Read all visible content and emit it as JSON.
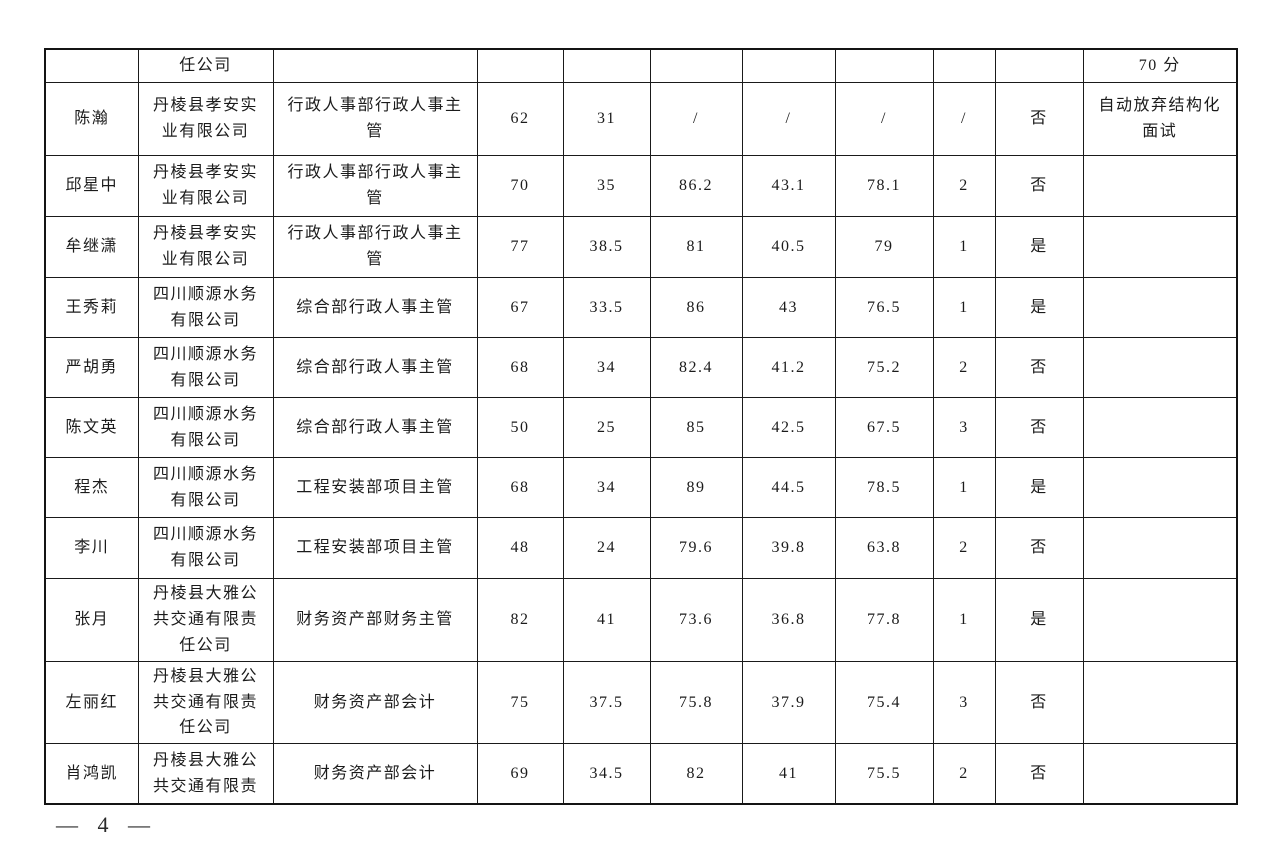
{
  "page": {
    "footer_page_number": "— 4 —"
  },
  "table": {
    "continuation_header": {
      "company_fragment": "任公司",
      "remark_fragment": "70 分"
    },
    "columns": [
      "name",
      "company",
      "position",
      "written_score",
      "written_weighted",
      "interview_score",
      "interview_weighted",
      "total_score",
      "rank",
      "qualified",
      "remark"
    ],
    "rows": [
      {
        "name": "陈瀚",
        "company": "丹棱县孝安实业有限公司",
        "position": "行政人事部行政人事主管",
        "written_score": "62",
        "written_weighted": "31",
        "interview_score": "/",
        "interview_weighted": "/",
        "total_score": "/",
        "rank": "/",
        "qualified": "否",
        "remark": "自动放弃结构化面试"
      },
      {
        "name": "邱星中",
        "company": "丹棱县孝安实业有限公司",
        "position": "行政人事部行政人事主管",
        "written_score": "70",
        "written_weighted": "35",
        "interview_score": "86.2",
        "interview_weighted": "43.1",
        "total_score": "78.1",
        "rank": "2",
        "qualified": "否",
        "remark": ""
      },
      {
        "name": "牟继潇",
        "company": "丹棱县孝安实业有限公司",
        "position": "行政人事部行政人事主管",
        "written_score": "77",
        "written_weighted": "38.5",
        "interview_score": "81",
        "interview_weighted": "40.5",
        "total_score": "79",
        "rank": "1",
        "qualified": "是",
        "remark": ""
      },
      {
        "name": "王秀莉",
        "company": "四川顺源水务有限公司",
        "position": "综合部行政人事主管",
        "written_score": "67",
        "written_weighted": "33.5",
        "interview_score": "86",
        "interview_weighted": "43",
        "total_score": "76.5",
        "rank": "1",
        "qualified": "是",
        "remark": ""
      },
      {
        "name": "严胡勇",
        "company": "四川顺源水务有限公司",
        "position": "综合部行政人事主管",
        "written_score": "68",
        "written_weighted": "34",
        "interview_score": "82.4",
        "interview_weighted": "41.2",
        "total_score": "75.2",
        "rank": "2",
        "qualified": "否",
        "remark": ""
      },
      {
        "name": "陈文英",
        "company": "四川顺源水务有限公司",
        "position": "综合部行政人事主管",
        "written_score": "50",
        "written_weighted": "25",
        "interview_score": "85",
        "interview_weighted": "42.5",
        "total_score": "67.5",
        "rank": "3",
        "qualified": "否",
        "remark": ""
      },
      {
        "name": "程杰",
        "company": "四川顺源水务有限公司",
        "position": "工程安装部项目主管",
        "written_score": "68",
        "written_weighted": "34",
        "interview_score": "89",
        "interview_weighted": "44.5",
        "total_score": "78.5",
        "rank": "1",
        "qualified": "是",
        "remark": ""
      },
      {
        "name": "李川",
        "company": "四川顺源水务有限公司",
        "position": "工程安装部项目主管",
        "written_score": "48",
        "written_weighted": "24",
        "interview_score": "79.6",
        "interview_weighted": "39.8",
        "total_score": "63.8",
        "rank": "2",
        "qualified": "否",
        "remark": ""
      },
      {
        "name": "张月",
        "company": "丹棱县大雅公共交通有限责任公司",
        "position": "财务资产部财务主管",
        "written_score": "82",
        "written_weighted": "41",
        "interview_score": "73.6",
        "interview_weighted": "36.8",
        "total_score": "77.8",
        "rank": "1",
        "qualified": "是",
        "remark": ""
      },
      {
        "name": "左丽红",
        "company": "丹棱县大雅公共交通有限责任公司",
        "position": "财务资产部会计",
        "written_score": "75",
        "written_weighted": "37.5",
        "interview_score": "75.8",
        "interview_weighted": "37.9",
        "total_score": "75.4",
        "rank": "3",
        "qualified": "否",
        "remark": ""
      },
      {
        "name": "肖鸿凯",
        "company": "丹棱县大雅公共交通有限责",
        "position": "财务资产部会计",
        "written_score": "69",
        "written_weighted": "34.5",
        "interview_score": "82",
        "interview_weighted": "41",
        "total_score": "75.5",
        "rank": "2",
        "qualified": "否",
        "remark": ""
      }
    ]
  },
  "colors": {
    "border": "#141414",
    "light_divider": "#a6a6a6",
    "text": "#1b1b1b",
    "background": "#ffffff"
  }
}
